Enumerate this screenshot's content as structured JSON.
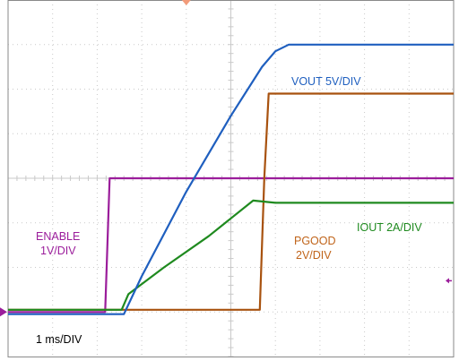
{
  "chart_data": {
    "type": "line",
    "x_unit_label": "1 ms/DIV",
    "xlim": [
      0,
      10
    ],
    "ylim": [
      -4,
      4
    ],
    "grid": true,
    "colors": {
      "grid": "#c9c9c9",
      "frame": "#8a8a8a",
      "enable": "#9b1d9b",
      "vout": "#1f5fbf",
      "pgood": "#a8520f",
      "iout": "#1f8a1f",
      "trigger_marker": "#f29b7a",
      "channel_marker": "#9b1d9b"
    },
    "series": [
      {
        "name": "ENABLE 1V/DIV",
        "key": "enable",
        "x": [
          0,
          2.18,
          2.28,
          10
        ],
        "y": [
          -3.0,
          -3.0,
          0.0,
          0.0
        ]
      },
      {
        "name": "VOUT 5V/DIV",
        "key": "vout",
        "x": [
          0,
          2.6,
          3.0,
          4.0,
          5.0,
          5.7,
          6.0,
          6.3,
          10
        ],
        "y": [
          -3.05,
          -3.05,
          -2.2,
          -0.3,
          1.4,
          2.5,
          2.85,
          3.0,
          3.0
        ]
      },
      {
        "name": "PGOOD 2V/DIV",
        "key": "pgood",
        "x": [
          0,
          5.65,
          5.75,
          5.85,
          10
        ],
        "y": [
          -2.95,
          -2.95,
          0.0,
          1.9,
          1.9
        ]
      },
      {
        "name": "IOUT 2A/DIV",
        "key": "iout",
        "x": [
          0,
          2.55,
          2.7,
          3.5,
          4.5,
          5.5,
          6.0,
          10
        ],
        "y": [
          -2.95,
          -2.95,
          -2.6,
          -2.0,
          -1.3,
          -0.5,
          -0.55,
          -0.55
        ]
      }
    ],
    "labels": {
      "enable_line1": "ENABLE",
      "enable_line2": "1V/DIV",
      "vout": "VOUT 5V/DIV",
      "pgood_line1": "PGOOD",
      "pgood_line2": "2V/DIV",
      "iout": "IOUT 2A/DIV",
      "timebase": "1 ms/DIV"
    }
  }
}
